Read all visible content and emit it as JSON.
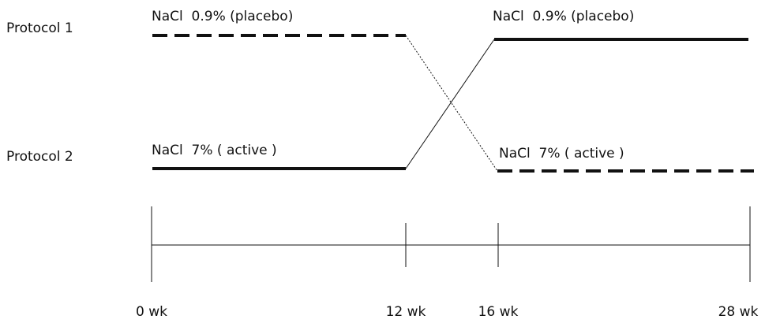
{
  "protocols": [
    {
      "label": "Protocol 1"
    },
    {
      "label": "Protocol 2"
    }
  ],
  "treatments": {
    "protocol1_phase1": "NaCl  0.9% (placebo)",
    "protocol1_phase2": "NaCl  0.9% (placebo)",
    "protocol2_phase1": "NaCl  7% ( active )",
    "protocol2_phase2": "NaCl  7% ( active )"
  },
  "timeline": {
    "ticks": [
      "0 wk",
      "12 wk",
      "16 wk",
      "28 wk"
    ]
  },
  "legend_style": {
    "placebo": "dashed thick line",
    "active": "solid thick line"
  },
  "colors": {
    "line": "#111111",
    "background": "#ffffff"
  }
}
